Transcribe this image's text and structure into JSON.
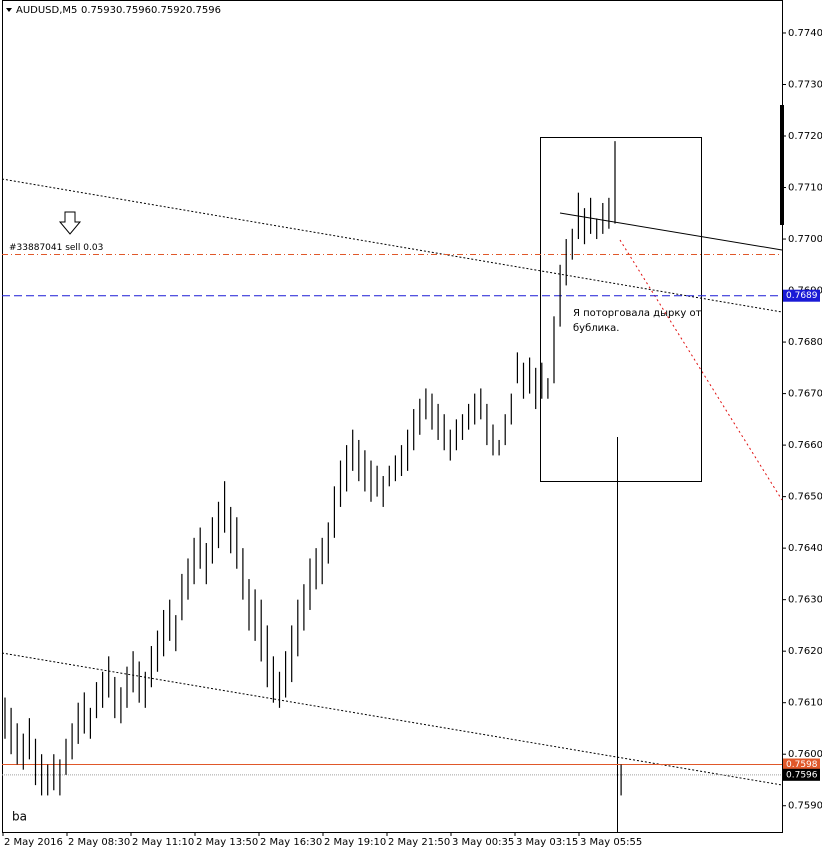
{
  "chart_data": {
    "type": "ohlc",
    "symbol": "AUDUSD,M5",
    "ohlc": [
      0.7593,
      0.7596,
      0.7592,
      0.7596
    ],
    "high": [
      0.7611,
      0.7609,
      0.7606,
      0.7604,
      0.7607,
      0.7603,
      0.76,
      0.7598,
      0.76,
      0.7599,
      0.7603,
      0.7606,
      0.761,
      0.7612,
      0.7609,
      0.7614,
      0.7616,
      0.7619,
      0.7615,
      0.7613,
      0.7617,
      0.762,
      0.7618,
      0.7616,
      0.7621,
      0.7624,
      0.7628,
      0.763,
      0.7627,
      0.7635,
      0.7638,
      0.7642,
      0.7644,
      0.7641,
      0.7646,
      0.7649,
      0.7653,
      0.7648,
      0.7646,
      0.764,
      0.7634,
      0.7632,
      0.763,
      0.7625,
      0.7619,
      0.7616,
      0.762,
      0.7625,
      0.763,
      0.7633,
      0.7638,
      0.764,
      0.7642,
      0.7645,
      0.7652,
      0.7657,
      0.766,
      0.7663,
      0.7661,
      0.7659,
      0.7657,
      0.7656,
      0.7654,
      0.7656,
      0.7658,
      0.766,
      0.7663,
      0.7667,
      0.7669,
      0.7671,
      0.767,
      0.7668,
      0.7666,
      0.7663,
      0.7665,
      0.7666,
      0.7668,
      0.767,
      0.7671,
      0.7668,
      0.7664,
      0.7661,
      0.7666,
      0.767,
      0.7678,
      0.7676,
      0.7677,
      0.7675,
      0.7676,
      0.7673,
      0.7685,
      0.7695,
      0.77,
      0.7702,
      0.7709,
      0.7706,
      0.7708,
      0.7704,
      0.7707,
      0.7708,
      0.7719,
      0.7598
    ],
    "low": [
      0.7603,
      0.76,
      0.7598,
      0.7597,
      0.7599,
      0.7594,
      0.7592,
      0.7592,
      0.7593,
      0.7592,
      0.7596,
      0.7599,
      0.7602,
      0.7604,
      0.7603,
      0.7607,
      0.7609,
      0.7611,
      0.7607,
      0.7606,
      0.7609,
      0.7612,
      0.761,
      0.7609,
      0.7613,
      0.7616,
      0.7619,
      0.7622,
      0.762,
      0.7626,
      0.763,
      0.7633,
      0.7636,
      0.7633,
      0.7637,
      0.764,
      0.7643,
      0.7639,
      0.7636,
      0.763,
      0.7624,
      0.7622,
      0.7618,
      0.7613,
      0.761,
      0.7609,
      0.7611,
      0.7614,
      0.7619,
      0.7624,
      0.7628,
      0.7632,
      0.7633,
      0.7637,
      0.7642,
      0.7648,
      0.7651,
      0.7655,
      0.7653,
      0.7651,
      0.7649,
      0.765,
      0.7648,
      0.7652,
      0.7653,
      0.7654,
      0.7655,
      0.7659,
      0.7662,
      0.7665,
      0.7663,
      0.7661,
      0.7659,
      0.7657,
      0.7659,
      0.7661,
      0.7663,
      0.7664,
      0.7665,
      0.766,
      0.7658,
      0.7658,
      0.766,
      0.7664,
      0.7672,
      0.7669,
      0.767,
      0.7667,
      0.7669,
      0.7669,
      0.7672,
      0.7683,
      0.7691,
      0.7696,
      0.77,
      0.7699,
      0.7701,
      0.77,
      0.7701,
      0.7702,
      0.7703,
      0.7592
    ],
    "color": "#000000",
    "ylim": [
      0.75849,
      0.77464
    ],
    "yticks": [
      {
        "value": 0.759,
        "label": "0.7590"
      },
      {
        "value": 0.76,
        "label": "0.7600"
      },
      {
        "value": 0.761,
        "label": "0.7610"
      },
      {
        "value": 0.762,
        "label": "0.7620"
      },
      {
        "value": 0.763,
        "label": "0.7630"
      },
      {
        "value": 0.764,
        "label": "0.7640"
      },
      {
        "value": 0.765,
        "label": "0.7650"
      },
      {
        "value": 0.766,
        "label": "0.7660"
      },
      {
        "value": 0.767,
        "label": "0.7670"
      },
      {
        "value": 0.768,
        "label": "0.7680"
      },
      {
        "value": 0.769,
        "label": "0.7690"
      },
      {
        "value": 0.77,
        "label": "0.7700"
      },
      {
        "value": 0.771,
        "label": "0.7710"
      },
      {
        "value": 0.772,
        "label": "0.7720"
      },
      {
        "value": 0.773,
        "label": "0.7730"
      },
      {
        "value": 0.774,
        "label": "0.7740"
      }
    ],
    "x_tick_labels": [
      "2 May 2016",
      "2 May 08:30",
      "2 May 11:10",
      "2 May 13:50",
      "2 May 16:30",
      "2 May 19:10",
      "2 May 21:50",
      "3 May 00:35",
      "3 May 03:15",
      "3 May 05:55"
    ],
    "order_line": {
      "value": 0.7697,
      "label": "#33887041 sell 0.03",
      "color": "#e0582a"
    },
    "price_lines": [
      {
        "value": 0.7689,
        "color": "#1a1ad6",
        "style": "dashed"
      },
      {
        "value": 0.7598,
        "color": "#e0582a",
        "style": "solid"
      },
      {
        "value": 0.7596,
        "color": "#a0a0a0",
        "style": "dotted",
        "box_color": "#000000"
      }
    ],
    "annotation": [
      "Я поторговала дырку от",
      "бублика."
    ],
    "corner_text": "ba"
  }
}
